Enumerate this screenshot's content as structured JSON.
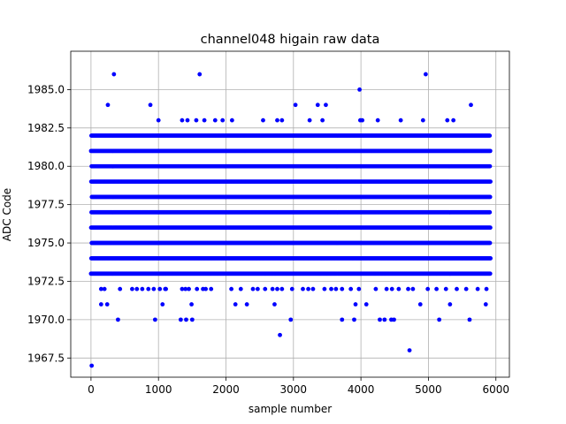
{
  "chart_data": {
    "type": "scatter",
    "title": "channel048 higain raw data",
    "xlabel": "sample number",
    "ylabel": "ADC Code",
    "xlim": [
      -300,
      6200
    ],
    "ylim": [
      1966.25,
      1987.5
    ],
    "xticks": [
      0,
      1000,
      2000,
      3000,
      4000,
      5000,
      6000
    ],
    "xtick_labels": [
      "0",
      "1000",
      "2000",
      "3000",
      "4000",
      "5000",
      "6000"
    ],
    "yticks": [
      1967.5,
      1970.0,
      1972.5,
      1975.0,
      1977.5,
      1980.0,
      1982.5,
      1985.0
    ],
    "ytick_labels": [
      "1967.5",
      "1970.0",
      "1972.5",
      "1975.0",
      "1977.5",
      "1980.0",
      "1982.5",
      "1985.0"
    ],
    "grid": true,
    "marker_color": "#0000ff",
    "series": [
      {
        "dense_levels": [
          1973,
          1974,
          1975,
          1976,
          1977,
          1978,
          1979,
          1980,
          1981,
          1982
        ],
        "dense_x_range": [
          0,
          5920
        ],
        "sparse_level_1972": [
          150,
          200,
          430,
          610,
          680,
          760,
          850,
          930,
          1020,
          1100,
          1110,
          1350,
          1400,
          1450,
          1570,
          1660,
          1700,
          1780,
          2080,
          2220,
          2400,
          2470,
          2580,
          2690,
          2760,
          2830,
          2980,
          3140,
          3220,
          3290,
          3460,
          3560,
          3630,
          3720,
          3850,
          3970,
          4220,
          4380,
          4460,
          4560,
          4700,
          4770,
          4990,
          5120,
          5260,
          5420,
          5560,
          5730,
          5860
        ],
        "sparse_level_1971": [
          150,
          240,
          1060,
          1490,
          2140,
          2310,
          2720,
          3920,
          4080,
          4880,
          5320,
          5850
        ],
        "sparse_level_1970": [
          400,
          950,
          1330,
          1410,
          1500,
          2960,
          3720,
          3900,
          4280,
          4350,
          4450,
          4490,
          5160,
          5610
        ],
        "outliers": [
          {
            "x": 10,
            "y": 1967
          },
          {
            "x": 2800,
            "y": 1969
          },
          {
            "x": 4720,
            "y": 1968
          },
          {
            "x": 250,
            "y": 1984
          },
          {
            "x": 880,
            "y": 1984
          },
          {
            "x": 3030,
            "y": 1984
          },
          {
            "x": 3360,
            "y": 1984
          },
          {
            "x": 3480,
            "y": 1984
          },
          {
            "x": 5630,
            "y": 1984
          },
          {
            "x": 1000,
            "y": 1983
          },
          {
            "x": 1350,
            "y": 1983
          },
          {
            "x": 1430,
            "y": 1983
          },
          {
            "x": 1560,
            "y": 1983
          },
          {
            "x": 1680,
            "y": 1983
          },
          {
            "x": 1840,
            "y": 1983
          },
          {
            "x": 1950,
            "y": 1983
          },
          {
            "x": 2090,
            "y": 1983
          },
          {
            "x": 2550,
            "y": 1983
          },
          {
            "x": 2760,
            "y": 1983
          },
          {
            "x": 2830,
            "y": 1983
          },
          {
            "x": 3240,
            "y": 1983
          },
          {
            "x": 3430,
            "y": 1983
          },
          {
            "x": 3990,
            "y": 1983
          },
          {
            "x": 4020,
            "y": 1983
          },
          {
            "x": 4250,
            "y": 1983
          },
          {
            "x": 4590,
            "y": 1983
          },
          {
            "x": 4920,
            "y": 1983
          },
          {
            "x": 5280,
            "y": 1983
          },
          {
            "x": 5370,
            "y": 1983
          },
          {
            "x": 3980,
            "y": 1985
          },
          {
            "x": 340,
            "y": 1986
          },
          {
            "x": 1610,
            "y": 1986
          },
          {
            "x": 4960,
            "y": 1986
          }
        ]
      }
    ]
  }
}
